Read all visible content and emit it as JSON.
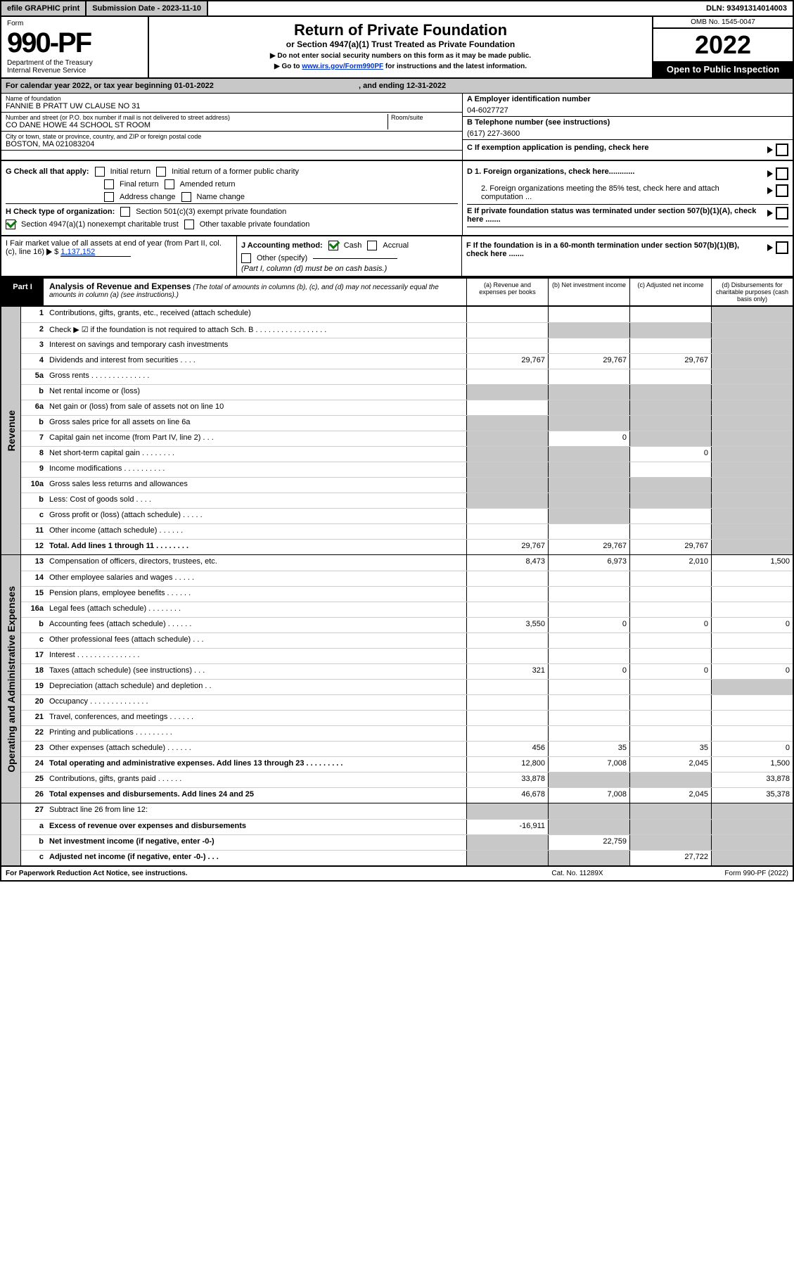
{
  "topbar": {
    "efile": "efile GRAPHIC print",
    "subdate_label": "Submission Date - 2023-11-10",
    "dln": "DLN: 93491314014003"
  },
  "header": {
    "form_label": "Form",
    "form_no": "990-PF",
    "dept": "Department of the Treasury",
    "irs": "Internal Revenue Service",
    "title": "Return of Private Foundation",
    "sub1": "or Section 4947(a)(1) Trust Treated as Private Foundation",
    "sub2a": "▶ Do not enter social security numbers on this form as it may be made public.",
    "sub2b_prefix": "▶ Go to ",
    "sub2b_link": "www.irs.gov/Form990PF",
    "sub2b_suffix": " for instructions and the latest information.",
    "omb": "OMB No. 1545-0047",
    "year": "2022",
    "open": "Open to Public Inspection"
  },
  "entity": {
    "cal": "For calendar year 2022, or tax year beginning 01-01-2022",
    "cal_end": ", and ending 12-31-2022",
    "name_lbl": "Name of foundation",
    "name": "FANNIE B PRATT UW CLAUSE NO 31",
    "addr_lbl": "Number and street (or P.O. box number if mail is not delivered to street address)",
    "addr": "CO DANE HOWE 44 SCHOOL ST ROOM",
    "room_lbl": "Room/suite",
    "city_lbl": "City or town, state or province, country, and ZIP or foreign postal code",
    "city": "BOSTON, MA 021083204",
    "a_lbl": "A Employer identification number",
    "a_val": "04-6027727",
    "b_lbl": "B Telephone number (see instructions)",
    "b_val": "(617) 227-3600",
    "c_lbl": "C If exemption application is pending, check here"
  },
  "checks": {
    "g": "G Check all that apply:",
    "g1": "Initial return",
    "g2": "Initial return of a former public charity",
    "g3": "Final return",
    "g4": "Amended return",
    "g5": "Address change",
    "g6": "Name change",
    "h": "H Check type of organization:",
    "h1": "Section 501(c)(3) exempt private foundation",
    "h2": "Section 4947(a)(1) nonexempt charitable trust",
    "h3": "Other taxable private foundation",
    "i": "I Fair market value of all assets at end of year (from Part II, col. (c), line 16)",
    "i_val": "1,137,152",
    "j": "J Accounting method:",
    "j1": "Cash",
    "j2": "Accrual",
    "j3": "Other (specify)",
    "j_note": "(Part I, column (d) must be on cash basis.)",
    "d1": "D 1. Foreign organizations, check here............",
    "d2": "2. Foreign organizations meeting the 85% test, check here and attach computation ...",
    "e": "E If private foundation status was terminated under section 507(b)(1)(A), check here .......",
    "f": "F If the foundation is in a 60-month termination under section 507(b)(1)(B), check here ......."
  },
  "part1": {
    "label": "Part I",
    "title": "Analysis of Revenue and Expenses",
    "note": " (The total of amounts in columns (b), (c), and (d) may not necessarily equal the amounts in column (a) (see instructions).)",
    "col_a": "(a) Revenue and expenses per books",
    "col_b": "(b) Net investment income",
    "col_c": "(c) Adjusted net income",
    "col_d": "(d) Disbursements for charitable purposes (cash basis only)"
  },
  "sections": {
    "revenue": "Revenue",
    "expenses": "Operating and Administrative Expenses"
  },
  "rows": [
    {
      "n": "1",
      "d": "Contributions, gifts, grants, etc., received (attach schedule)",
      "a": "",
      "b": "",
      "c": "",
      "d_shade": true
    },
    {
      "n": "2",
      "d": "Check ▶ ☑ if the foundation is not required to attach Sch. B   . . . . . . . . . . . . . . . . .",
      "shade_bcd": true
    },
    {
      "n": "3",
      "d": "Interest on savings and temporary cash investments",
      "a": "",
      "b": "",
      "c": "",
      "d_shade": true
    },
    {
      "n": "4",
      "d": "Dividends and interest from securities   . . . .",
      "a": "29,767",
      "b": "29,767",
      "c": "29,767",
      "d_shade": true
    },
    {
      "n": "5a",
      "d": "Gross rents   . . . . . . . . . . . . . .",
      "a": "",
      "b": "",
      "c": "",
      "d_shade": true
    },
    {
      "n": "b",
      "d": "Net rental income or (loss)",
      "shade_abcd": true
    },
    {
      "n": "6a",
      "d": "Net gain or (loss) from sale of assets not on line 10",
      "a": "",
      "b_shade": true,
      "c_shade": true,
      "d_shade": true
    },
    {
      "n": "b",
      "d": "Gross sales price for all assets on line 6a",
      "shade_abcd": true
    },
    {
      "n": "7",
      "d": "Capital gain net income (from Part IV, line 2)   . . .",
      "a_shade": true,
      "b": "0",
      "c_shade": true,
      "d_shade": true
    },
    {
      "n": "8",
      "d": "Net short-term capital gain   . . . . . . . .",
      "a_shade": true,
      "b_shade": true,
      "c": "0",
      "d_shade": true
    },
    {
      "n": "9",
      "d": "Income modifications   . . . . . . . . . .",
      "a_shade": true,
      "b_shade": true,
      "c": "",
      "d_shade": true
    },
    {
      "n": "10a",
      "d": "Gross sales less returns and allowances",
      "shade_abcd": true
    },
    {
      "n": "b",
      "d": "Less: Cost of goods sold   . . . .",
      "shade_abcd": true
    },
    {
      "n": "c",
      "d": "Gross profit or (loss) (attach schedule)   . . . . .",
      "a": "",
      "b_shade": true,
      "c": "",
      "d_shade": true
    },
    {
      "n": "11",
      "d": "Other income (attach schedule)   . . . . . .",
      "a": "",
      "b": "",
      "c": "",
      "d_shade": true
    },
    {
      "n": "12",
      "d": "Total. Add lines 1 through 11   . . . . . . . .",
      "bold": true,
      "a": "29,767",
      "b": "29,767",
      "c": "29,767",
      "d_shade": true
    }
  ],
  "rows2": [
    {
      "n": "13",
      "d": "Compensation of officers, directors, trustees, etc.",
      "a": "8,473",
      "b": "6,973",
      "c": "2,010",
      "dd": "1,500"
    },
    {
      "n": "14",
      "d": "Other employee salaries and wages   . . . . .",
      "a": "",
      "b": "",
      "c": "",
      "dd": ""
    },
    {
      "n": "15",
      "d": "Pension plans, employee benefits   . . . . . .",
      "a": "",
      "b": "",
      "c": "",
      "dd": ""
    },
    {
      "n": "16a",
      "d": "Legal fees (attach schedule)   . . . . . . . .",
      "a": "",
      "b": "",
      "c": "",
      "dd": ""
    },
    {
      "n": "b",
      "d": "Accounting fees (attach schedule)   . . . . . .",
      "a": "3,550",
      "b": "0",
      "c": "0",
      "dd": "0"
    },
    {
      "n": "c",
      "d": "Other professional fees (attach schedule)   . . .",
      "a": "",
      "b": "",
      "c": "",
      "dd": ""
    },
    {
      "n": "17",
      "d": "Interest   . . . . . . . . . . . . . . .",
      "a": "",
      "b": "",
      "c": "",
      "dd": ""
    },
    {
      "n": "18",
      "d": "Taxes (attach schedule) (see instructions)   . . .",
      "a": "321",
      "b": "0",
      "c": "0",
      "dd": "0"
    },
    {
      "n": "19",
      "d": "Depreciation (attach schedule) and depletion   . .",
      "a": "",
      "b": "",
      "c": "",
      "d_shade": true
    },
    {
      "n": "20",
      "d": "Occupancy   . . . . . . . . . . . . . .",
      "a": "",
      "b": "",
      "c": "",
      "dd": ""
    },
    {
      "n": "21",
      "d": "Travel, conferences, and meetings   . . . . . .",
      "a": "",
      "b": "",
      "c": "",
      "dd": ""
    },
    {
      "n": "22",
      "d": "Printing and publications   . . . . . . . . .",
      "a": "",
      "b": "",
      "c": "",
      "dd": ""
    },
    {
      "n": "23",
      "d": "Other expenses (attach schedule)   . . . . . .",
      "a": "456",
      "b": "35",
      "c": "35",
      "dd": "0"
    },
    {
      "n": "24",
      "d": "Total operating and administrative expenses. Add lines 13 through 23   . . . . . . . . .",
      "bold": true,
      "a": "12,800",
      "b": "7,008",
      "c": "2,045",
      "dd": "1,500"
    },
    {
      "n": "25",
      "d": "Contributions, gifts, grants paid   . . . . . .",
      "a": "33,878",
      "b_shade": true,
      "c_shade": true,
      "dd": "33,878"
    },
    {
      "n": "26",
      "d": "Total expenses and disbursements. Add lines 24 and 25",
      "bold": true,
      "a": "46,678",
      "b": "7,008",
      "c": "2,045",
      "dd": "35,378"
    }
  ],
  "rows3": [
    {
      "n": "27",
      "d": "Subtract line 26 from line 12:",
      "shade_abcd": true
    },
    {
      "n": "a",
      "d": "Excess of revenue over expenses and disbursements",
      "bold": true,
      "a": "-16,911",
      "b_shade": true,
      "c_shade": true,
      "d_shade": true
    },
    {
      "n": "b",
      "d": "Net investment income (if negative, enter -0-)",
      "bold": true,
      "a_shade": true,
      "b": "22,759",
      "c_shade": true,
      "d_shade": true
    },
    {
      "n": "c",
      "d": "Adjusted net income (if negative, enter -0-)   . . .",
      "bold": true,
      "a_shade": true,
      "b_shade": true,
      "c": "27,722",
      "d_shade": true
    }
  ],
  "foot": {
    "l": "For Paperwork Reduction Act Notice, see instructions.",
    "m": "Cat. No. 11289X",
    "r": "Form 990-PF (2022)"
  }
}
